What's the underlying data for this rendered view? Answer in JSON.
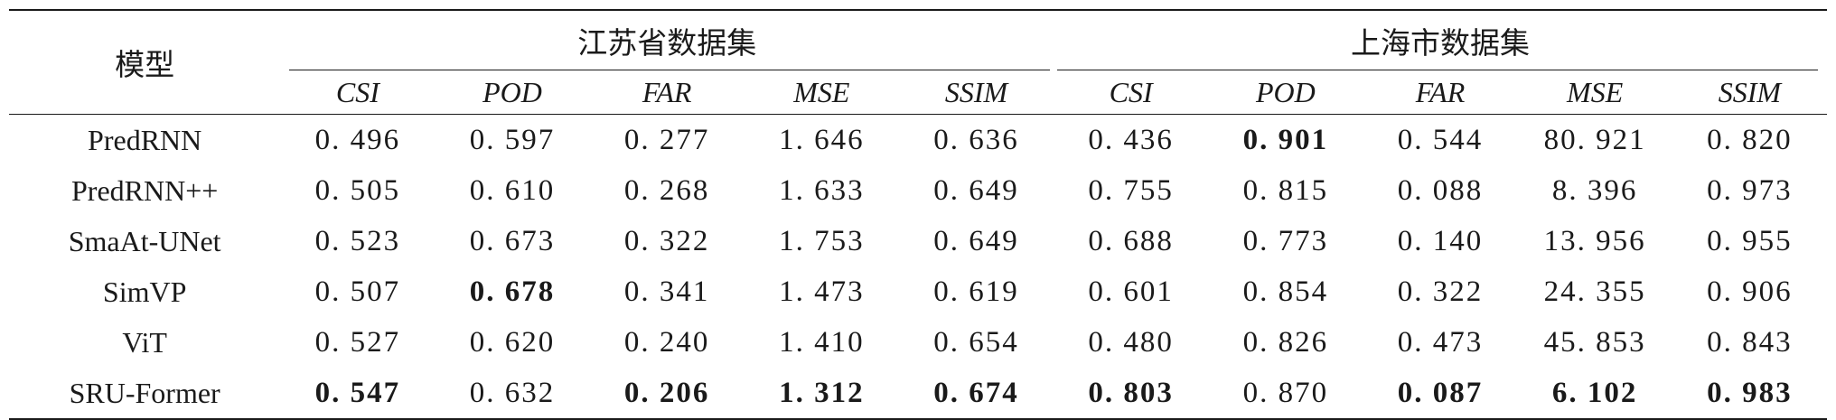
{
  "table": {
    "model_header": "模型",
    "groups": [
      {
        "label": "江苏省数据集"
      },
      {
        "label": "上海市数据集"
      }
    ],
    "metrics": [
      "CSI",
      "POD",
      "FAR",
      "MSE",
      "SSIM",
      "CSI",
      "POD",
      "FAR",
      "MSE",
      "SSIM"
    ],
    "rows": [
      {
        "model": "PredRNN",
        "values": [
          "0. 496",
          "0. 597",
          "0. 277",
          "1. 646",
          "0. 636",
          "0. 436",
          "0. 901",
          "0. 544",
          "80. 921",
          "0. 820"
        ]
      },
      {
        "model": "PredRNN++",
        "values": [
          "0. 505",
          "0. 610",
          "0. 268",
          "1. 633",
          "0. 649",
          "0. 755",
          "0. 815",
          "0. 088",
          "8. 396",
          "0. 973"
        ]
      },
      {
        "model": "SmaAt-UNet",
        "values": [
          "0. 523",
          "0. 673",
          "0. 322",
          "1. 753",
          "0. 649",
          "0. 688",
          "0. 773",
          "0. 140",
          "13. 956",
          "0. 955"
        ]
      },
      {
        "model": "SimVP",
        "values": [
          "0. 507",
          "0. 678",
          "0. 341",
          "1. 473",
          "0. 619",
          "0. 601",
          "0. 854",
          "0. 322",
          "24. 355",
          "0. 906"
        ]
      },
      {
        "model": "ViT",
        "values": [
          "0. 527",
          "0. 620",
          "0. 240",
          "1. 410",
          "0. 654",
          "0. 480",
          "0. 826",
          "0. 473",
          "45. 853",
          "0. 843"
        ]
      },
      {
        "model": "SRU-Former",
        "values": [
          "0. 547",
          "0. 632",
          "0. 206",
          "1. 312",
          "0. 674",
          "0. 803",
          "0. 870",
          "0. 087",
          "6. 102",
          "0. 983"
        ]
      }
    ],
    "bold_cells": [
      [
        0,
        6
      ],
      [
        3,
        1
      ],
      [
        5,
        0
      ],
      [
        5,
        2
      ],
      [
        5,
        3
      ],
      [
        5,
        4
      ],
      [
        5,
        5
      ],
      [
        5,
        7
      ],
      [
        5,
        8
      ],
      [
        5,
        9
      ]
    ]
  }
}
